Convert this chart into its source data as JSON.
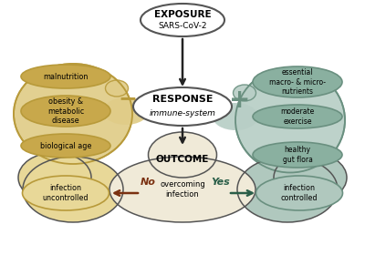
{
  "bg_color": "#ffffff",
  "exposure_label": "EXPOSURE",
  "exposure_sublabel": "SARS-CoV-2",
  "response_label": "RESPONSE",
  "response_sublabel": "immune-system",
  "outcome_label": "OUTCOME",
  "negative_items": [
    "malnutrition",
    "obesity &\nmetabolic\ndisease",
    "biological age"
  ],
  "positive_items": [
    "essential\nmacro- & micro-\nnutrients",
    "moderate\nexercise",
    "healthy\ngut flora"
  ],
  "minus_sign": "−",
  "plus_sign": "+",
  "outcome_center": "overcoming\ninfection",
  "outcome_left": "infection\nuncontrolled",
  "outcome_right": "infection\ncontrolled",
  "no_label": "No",
  "yes_label": "Yes",
  "gold_color": "#b89a3a",
  "gold_light": "#e8d898",
  "gold_fill": "#c8a84b",
  "gold_blob": "#e0cc88",
  "teal_color": "#6a9080",
  "teal_light": "#b0c8be",
  "teal_fill": "#8ab0a0",
  "teal_blob": "#b8cec6",
  "outline_color": "#555555",
  "arrow_color": "#222222",
  "no_color": "#7a3010",
  "yes_color": "#2a5e48"
}
